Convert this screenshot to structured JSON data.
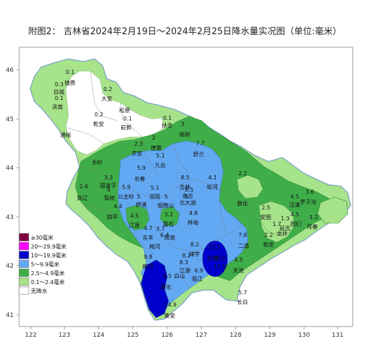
{
  "title": "附图2： 吉林省2024年2月19日～2024年2月25日降水量实况图（单位:毫米）",
  "axes": {
    "lon_ticks": [
      "122",
      "123",
      "124",
      "125",
      "126",
      "127",
      "128",
      "129",
      "130",
      "131"
    ],
    "lat_ticks": [
      "46",
      "45",
      "44",
      "43",
      "42",
      "41"
    ]
  },
  "legend": [
    {
      "label": "≥30毫米",
      "color": "#800040"
    },
    {
      "label": "20～29.9毫米",
      "color": "#ff00ff"
    },
    {
      "label": "10～19.9毫米",
      "color": "#0000cd"
    },
    {
      "label": "5～9.9毫米",
      "color": "#63a8f2"
    },
    {
      "label": "2.5～4.9毫米",
      "color": "#3fae49"
    },
    {
      "label": "0.1～2.4毫米",
      "color": "#a6e38a"
    },
    {
      "label": "无降水",
      "color": "#ffffff"
    }
  ],
  "stations": [
    {
      "name": "白城",
      "value": "0.3"
    },
    {
      "name": "镇赉",
      "value": "0.1"
    },
    {
      "name": "洮南",
      "value": "0.1"
    },
    {
      "name": "大安",
      "value": "0.2"
    },
    {
      "name": "通榆",
      "value": ""
    },
    {
      "name": "乾安",
      "value": "0.2"
    },
    {
      "name": "松原",
      "value": ""
    },
    {
      "name": "前郭",
      "value": "0.1"
    },
    {
      "name": "扶余",
      "value": "0.1"
    },
    {
      "name": "长岭",
      "value": ""
    },
    {
      "name": "榆树",
      "value": "3"
    },
    {
      "name": "德惠",
      "value": "2"
    },
    {
      "name": "农安",
      "value": "2.3"
    },
    {
      "name": "舒兰",
      "value": "7.7"
    },
    {
      "name": "九台",
      "value": "5.1"
    },
    {
      "name": "长春",
      "value": "5.9"
    },
    {
      "name": "双辽",
      "value": "2.6"
    },
    {
      "name": "孤家子",
      "value": "3.3"
    },
    {
      "name": "公主岭",
      "value": "5.9"
    },
    {
      "name": "梨树",
      "value": "4"
    },
    {
      "name": "双阳",
      "value": "5.1"
    },
    {
      "name": "吉林",
      "value": "8.5"
    },
    {
      "name": "蛟河",
      "value": "4.1"
    },
    {
      "name": "永吉",
      "value": "8.5"
    },
    {
      "name": "北大湖",
      "value": "5"
    },
    {
      "name": "四平",
      "value": "4.4"
    },
    {
      "name": "伊通",
      "value": "5"
    },
    {
      "name": "烟筒山",
      "value": "5"
    },
    {
      "name": "磐石",
      "value": "3.1"
    },
    {
      "name": "桦甸",
      "value": "4.8"
    },
    {
      "name": "辽源",
      "value": "4.5"
    },
    {
      "name": "东丰",
      "value": "4.7"
    },
    {
      "name": "梅河",
      "value": "3.7"
    },
    {
      "name": "辉南",
      "value": "6.4"
    },
    {
      "name": "柳河",
      "value": "9.8"
    },
    {
      "name": "靖宇",
      "value": "8.2"
    },
    {
      "name": "江源",
      "value": "8.3"
    },
    {
      "name": "白山",
      "value": "8.2"
    },
    {
      "name": "通化",
      "value": "8.5"
    },
    {
      "name": "临江",
      "value": "6.9"
    },
    {
      "name": "集安",
      "value": "14.9"
    },
    {
      "name": "东岗",
      "value": "13.1"
    },
    {
      "name": "松江",
      "value": "11.5"
    },
    {
      "name": "二道",
      "value": "7.6"
    },
    {
      "name": "天池",
      "value": "4.5"
    },
    {
      "name": "长白",
      "value": "5.7"
    },
    {
      "name": "敦化",
      "value": "2.2"
    },
    {
      "name": "安图",
      "value": "2.5"
    },
    {
      "name": "和龙",
      "value": "2.2"
    },
    {
      "name": "汪清",
      "value": "4.5"
    },
    {
      "name": "图们",
      "value": "4.5"
    },
    {
      "name": "延吉",
      "value": "1.3"
    },
    {
      "name": "龙井",
      "value": "1.7"
    },
    {
      "name": "罗子沟",
      "value": "3.6"
    },
    {
      "name": "珲春",
      "value": "1.2"
    }
  ]
}
